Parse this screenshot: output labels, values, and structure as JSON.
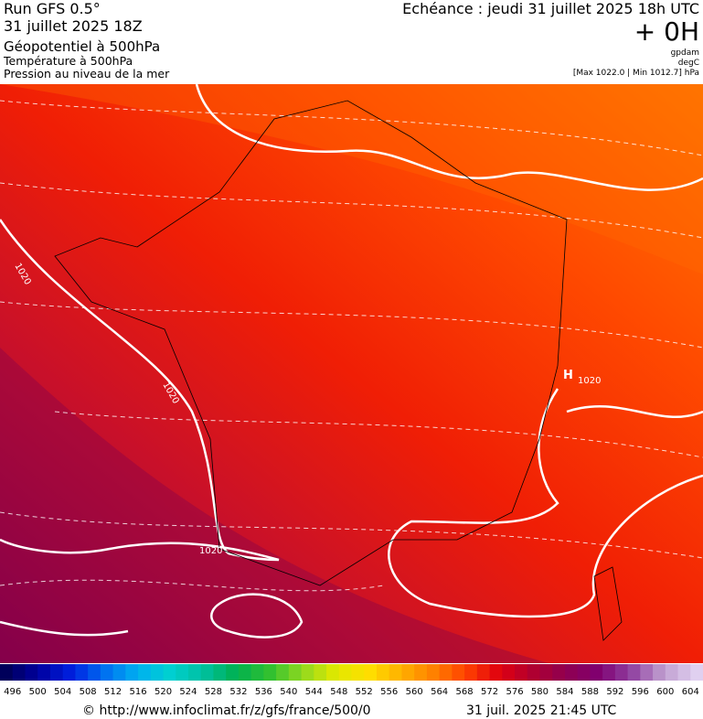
{
  "header": {
    "left": [
      "Run GFS 0.5°",
      "31 juillet 2025 18Z",
      "Géopotentiel à 500hPa",
      "Température à 500hPa",
      "Pression au niveau de la mer"
    ],
    "echeance": "Echéance : jeudi 31 juillet 2025 18h UTC",
    "offset": "+ 0H",
    "units": [
      "gpdam",
      "degC"
    ],
    "range": "[Max 1022.0 | Min 1012.7] hPa"
  },
  "map": {
    "isobar_labels": [
      "1020",
      "1020",
      "1020",
      "1020"
    ],
    "high_marker": "H"
  },
  "legend": {
    "labels": [
      496,
      500,
      504,
      508,
      512,
      516,
      520,
      524,
      528,
      532,
      536,
      540,
      544,
      548,
      552,
      556,
      560,
      564,
      568,
      572,
      576,
      580,
      584,
      588,
      592,
      596,
      600,
      604
    ]
  },
  "footer": {
    "source": "© http://www.infoclimat.fr/z/gfs/france/500/0",
    "date": "31 juil. 2025 21:45 UTC"
  }
}
